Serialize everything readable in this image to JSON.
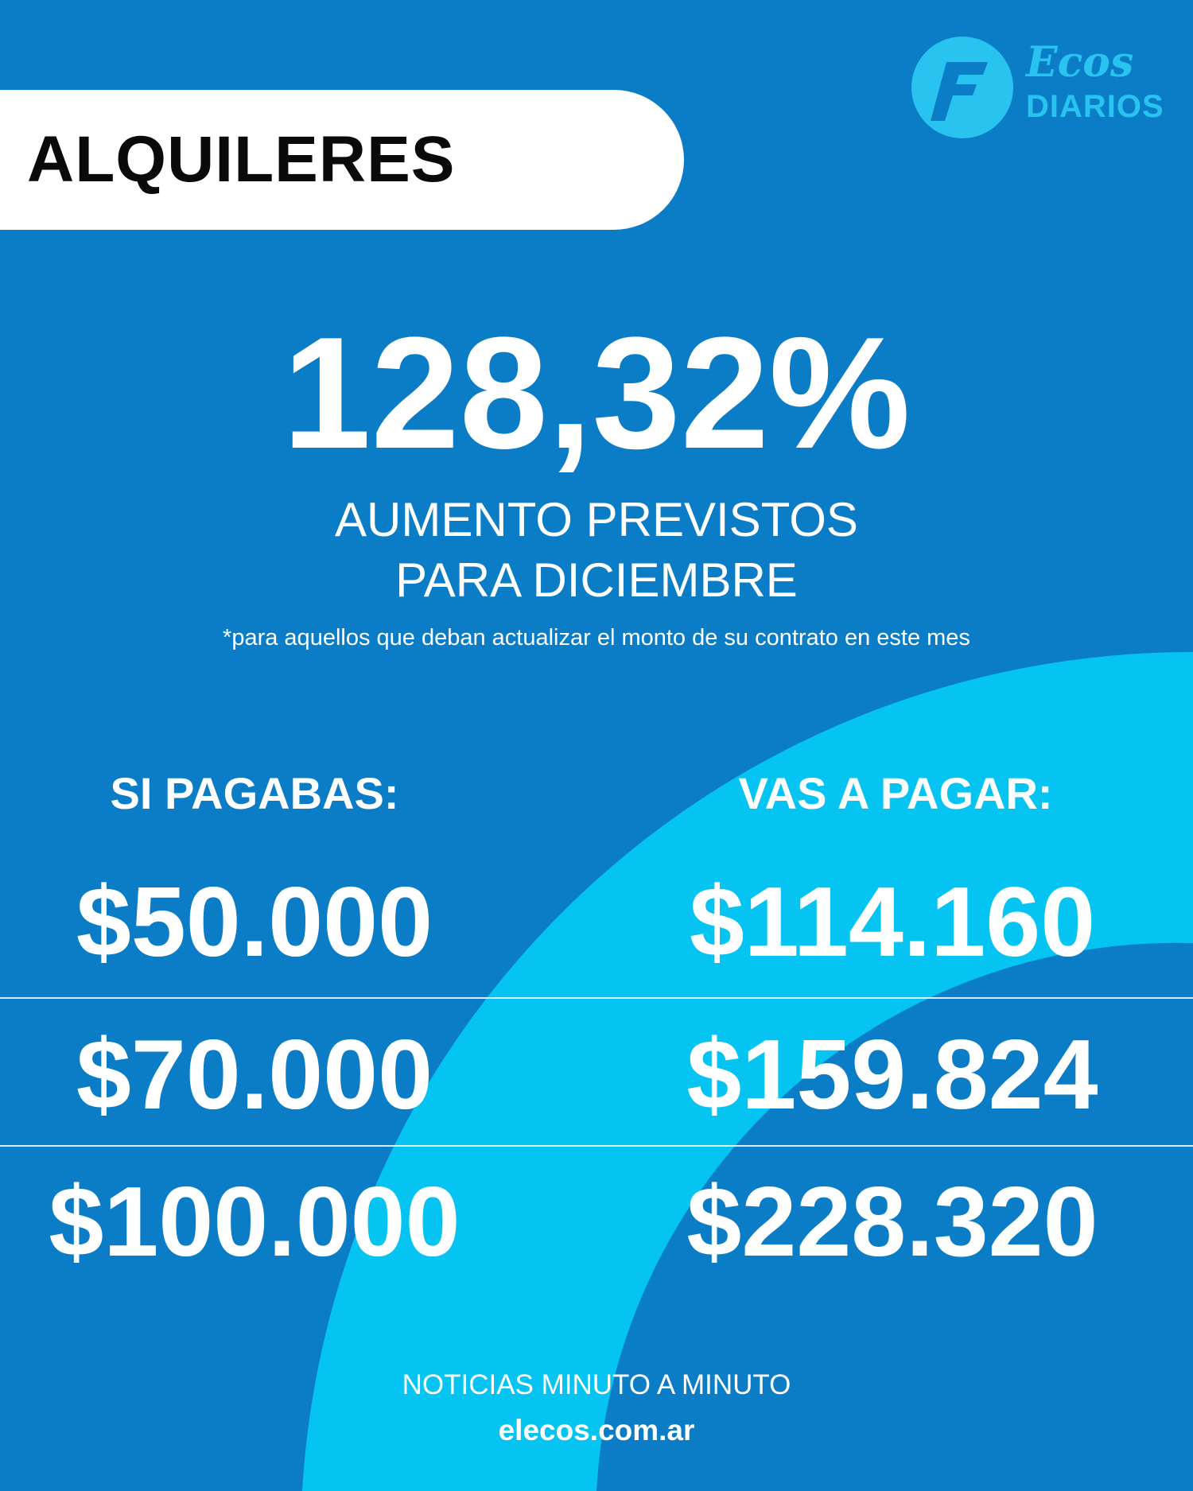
{
  "header": {
    "title": "ALQUILERES"
  },
  "logo": {
    "line1": "Ecos",
    "line2": "DIARIOS"
  },
  "headline": {
    "percent": "128,32%",
    "subtitle_line1": "AUMENTO PREVISTOS",
    "subtitle_line2": "PARA DICIEMBRE",
    "footnote": "*para aquellos que deban actualizar el monto de su contrato en este mes"
  },
  "table": {
    "left_header": "SI PAGABAS:",
    "right_header": "VAS A PAGAR:",
    "rows": [
      {
        "before": "$50.000",
        "after": "$114.160"
      },
      {
        "before": "$70.000",
        "after": "$159.824"
      },
      {
        "before": "$100.000",
        "after": "$228.320"
      }
    ]
  },
  "footer": {
    "tagline": "NOTICIAS MINUTO A MINUTO",
    "site": "elecos.com.ar"
  },
  "colors": {
    "background": "#0b7dc7",
    "accent": "#05c4f1",
    "title_bg": "#ffffff"
  }
}
